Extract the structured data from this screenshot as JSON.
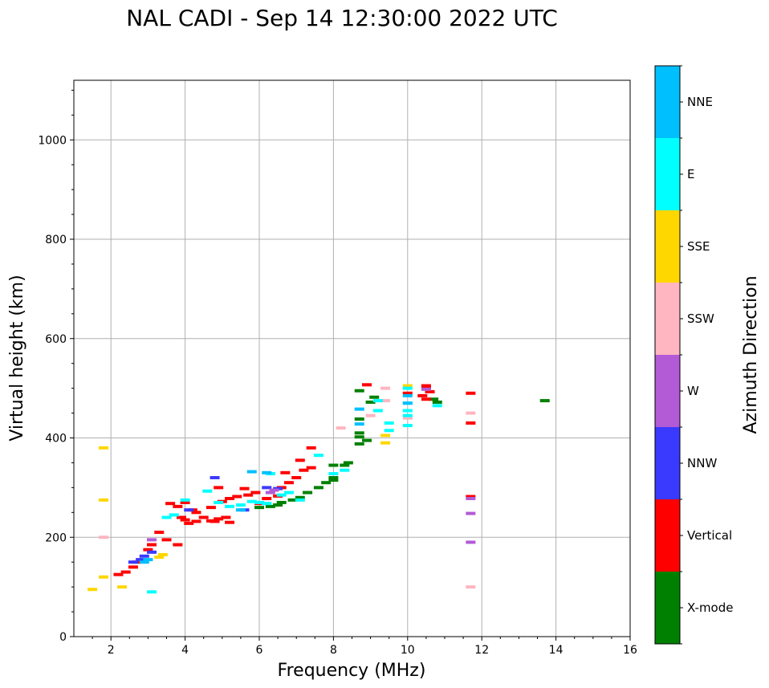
{
  "chart_data": {
    "type": "scatter",
    "title": "NAL CADI - Sep 14 12:30:00 2022 UTC",
    "xlabel": "Frequency (MHz)",
    "ylabel": "Virtual height (km)",
    "xlim": [
      1,
      16
    ],
    "ylim": [
      0,
      1120
    ],
    "xticks": [
      2,
      4,
      6,
      8,
      10,
      12,
      14,
      16
    ],
    "yticks": [
      0,
      200,
      400,
      600,
      800,
      1000
    ],
    "xtick_labels": [
      "2",
      "4",
      "6",
      "8",
      "10",
      "12",
      "14",
      "16"
    ],
    "ytick_labels": [
      "0",
      "200",
      "400",
      "600",
      "800",
      "1000"
    ],
    "grid": true,
    "colorbar": {
      "label": "Azimuth Direction",
      "categories": [
        "X-mode",
        "Vertical",
        "NNW",
        "W",
        "SSW",
        "SSE",
        "E",
        "NNE"
      ],
      "colors": [
        "#008000",
        "#ff0000",
        "#3a3aff",
        "#b35ad6",
        "#ffb6c1",
        "#ffd700",
        "#00ffff",
        "#00bfff"
      ]
    },
    "series": [
      {
        "name": "X-mode",
        "points": [
          [
            6.5,
            265
          ],
          [
            6.6,
            270
          ],
          [
            6.9,
            275
          ],
          [
            7.1,
            280
          ],
          [
            7.3,
            290
          ],
          [
            7.6,
            300
          ],
          [
            7.8,
            310
          ],
          [
            8.0,
            315
          ],
          [
            8.0,
            320
          ],
          [
            8.3,
            345
          ],
          [
            8.4,
            350
          ],
          [
            8.0,
            345
          ],
          [
            8.7,
            388
          ],
          [
            8.7,
            402
          ],
          [
            8.7,
            410
          ],
          [
            8.7,
            438
          ],
          [
            8.9,
            395
          ],
          [
            9.0,
            472
          ],
          [
            8.7,
            495
          ],
          [
            9.1,
            482
          ],
          [
            10.7,
            478
          ],
          [
            10.8,
            472
          ],
          [
            13.7,
            475
          ],
          [
            6.0,
            260
          ],
          [
            6.3,
            262
          ]
        ]
      },
      {
        "name": "Vertical",
        "points": [
          [
            2.2,
            125
          ],
          [
            2.4,
            130
          ],
          [
            2.6,
            140
          ],
          [
            2.7,
            150
          ],
          [
            3.0,
            175
          ],
          [
            3.1,
            185
          ],
          [
            3.3,
            210
          ],
          [
            3.5,
            195
          ],
          [
            3.8,
            185
          ],
          [
            3.6,
            268
          ],
          [
            3.8,
            262
          ],
          [
            4.0,
            270
          ],
          [
            4.2,
            255
          ],
          [
            4.3,
            250
          ],
          [
            3.9,
            240
          ],
          [
            4.0,
            235
          ],
          [
            4.1,
            228
          ],
          [
            4.3,
            232
          ],
          [
            4.5,
            240
          ],
          [
            4.7,
            233
          ],
          [
            4.8,
            232
          ],
          [
            4.9,
            237
          ],
          [
            5.1,
            240
          ],
          [
            5.2,
            230
          ],
          [
            4.7,
            260
          ],
          [
            5.0,
            272
          ],
          [
            5.2,
            278
          ],
          [
            5.4,
            282
          ],
          [
            5.7,
            285
          ],
          [
            5.9,
            290
          ],
          [
            6.0,
            268
          ],
          [
            6.2,
            278
          ],
          [
            6.5,
            283
          ],
          [
            6.6,
            300
          ],
          [
            6.8,
            310
          ],
          [
            7.0,
            320
          ],
          [
            6.7,
            330
          ],
          [
            7.2,
            335
          ],
          [
            7.4,
            340
          ],
          [
            7.4,
            380
          ],
          [
            7.1,
            355
          ],
          [
            8.9,
            507
          ],
          [
            10.5,
            505
          ],
          [
            10.5,
            500
          ],
          [
            10.6,
            493
          ],
          [
            10.4,
            485
          ],
          [
            10.5,
            478
          ],
          [
            10.0,
            490
          ],
          [
            11.7,
            490
          ],
          [
            11.7,
            430
          ],
          [
            11.7,
            282
          ],
          [
            4.9,
            300
          ],
          [
            5.6,
            298
          ]
        ]
      },
      {
        "name": "NNW",
        "points": [
          [
            2.6,
            150
          ],
          [
            2.8,
            155
          ],
          [
            2.9,
            162
          ],
          [
            3.1,
            170
          ],
          [
            4.8,
            320
          ],
          [
            5.6,
            255
          ],
          [
            6.2,
            300
          ],
          [
            6.5,
            298
          ],
          [
            4.1,
            255
          ]
        ]
      },
      {
        "name": "W",
        "points": [
          [
            3.1,
            195
          ],
          [
            6.3,
            290
          ],
          [
            6.4,
            295
          ],
          [
            11.7,
            248
          ],
          [
            11.7,
            190
          ],
          [
            11.7,
            278
          ],
          [
            10.5,
            498
          ]
        ]
      },
      {
        "name": "SSW",
        "points": [
          [
            8.2,
            420
          ],
          [
            9.4,
            500
          ],
          [
            9.4,
            475
          ],
          [
            10.0,
            440
          ],
          [
            11.7,
            450
          ],
          [
            11.7,
            100
          ],
          [
            1.8,
            200
          ],
          [
            9.0,
            445
          ]
        ]
      },
      {
        "name": "SSE",
        "points": [
          [
            1.5,
            95
          ],
          [
            1.8,
            120
          ],
          [
            2.3,
            100
          ],
          [
            3.4,
            165
          ],
          [
            3.3,
            160
          ],
          [
            9.4,
            390
          ],
          [
            9.4,
            405
          ],
          [
            10.0,
            505
          ],
          [
            1.8,
            380
          ],
          [
            1.8,
            275
          ]
        ]
      },
      {
        "name": "E",
        "points": [
          [
            3.5,
            240
          ],
          [
            3.7,
            245
          ],
          [
            4.0,
            275
          ],
          [
            4.6,
            293
          ],
          [
            4.9,
            270
          ],
          [
            5.2,
            262
          ],
          [
            5.5,
            265
          ],
          [
            5.8,
            272
          ],
          [
            6.0,
            270
          ],
          [
            6.2,
            268
          ],
          [
            6.6,
            285
          ],
          [
            6.8,
            290
          ],
          [
            7.1,
            275
          ],
          [
            7.6,
            365
          ],
          [
            8.0,
            328
          ],
          [
            8.3,
            335
          ],
          [
            9.2,
            455
          ],
          [
            9.2,
            475
          ],
          [
            9.5,
            430
          ],
          [
            9.5,
            415
          ],
          [
            10.0,
            500
          ],
          [
            10.0,
            470
          ],
          [
            10.0,
            455
          ],
          [
            10.0,
            445
          ],
          [
            10.0,
            425
          ],
          [
            10.8,
            465
          ],
          [
            3.1,
            90
          ],
          [
            6.3,
            328
          ]
        ]
      },
      {
        "name": "NNE",
        "points": [
          [
            2.9,
            150
          ],
          [
            3.0,
            155
          ],
          [
            5.5,
            255
          ],
          [
            5.8,
            332
          ],
          [
            8.7,
            458
          ],
          [
            8.7,
            428
          ],
          [
            10.0,
            485
          ],
          [
            10.0,
            470
          ],
          [
            6.2,
            330
          ]
        ]
      }
    ]
  }
}
